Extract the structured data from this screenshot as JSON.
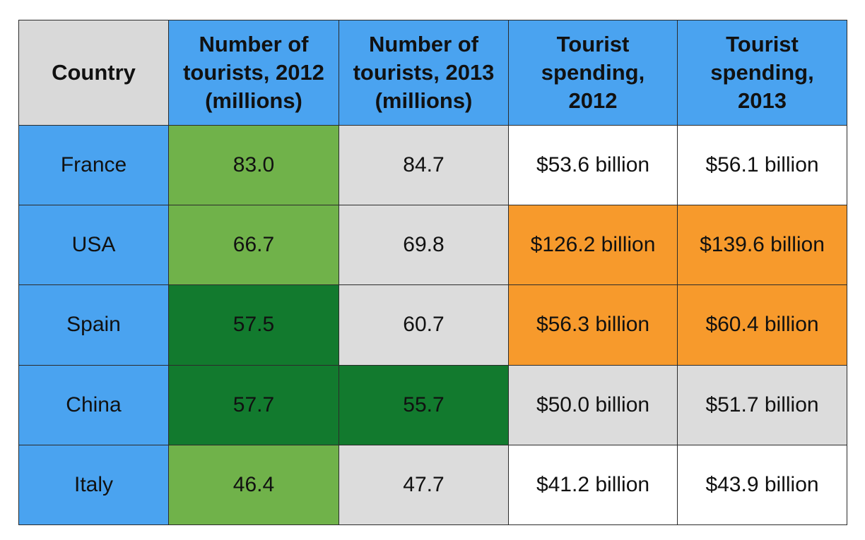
{
  "chart_data": {
    "type": "table",
    "title": "",
    "columns": [
      "Country",
      "Number of tourists, 2012 (millions)",
      "Number of tourists, 2013 (millions)",
      "Tourist spending, 2012",
      "Tourist spending, 2013"
    ],
    "header_lines": [
      [
        "Country"
      ],
      [
        "Number of",
        "tourists, 2012",
        "(millions)"
      ],
      [
        "Number of",
        "tourists, 2013",
        "(millions)"
      ],
      [
        "Tourist",
        "spending,",
        "2012"
      ],
      [
        "Tourist",
        "spending,",
        "2013"
      ]
    ],
    "rows": [
      [
        "France",
        "83.0",
        "84.7",
        "$53.6 billion",
        "$56.1 billion"
      ],
      [
        "USA",
        "66.7",
        "69.8",
        "$126.2 billion",
        "$139.6 billion"
      ],
      [
        "Spain",
        "57.5",
        "60.7",
        "$56.3 billion",
        "$60.4 billion"
      ],
      [
        "China",
        "57.7",
        "55.7",
        "$50.0 billion",
        "$51.7 billion"
      ],
      [
        "Italy",
        "46.4",
        "47.7",
        "$41.2 billion",
        "$43.9 billion"
      ]
    ]
  },
  "colors": {
    "header_country": "#d9d9d9",
    "header": "#4aa3f0",
    "country_cell": "#4aa3f0",
    "light_green": "#70b24a",
    "dark_green": "#127a2e",
    "gray": "#dcdcdc",
    "white": "#ffffff",
    "orange": "#f79a2c"
  },
  "cell_fills": [
    [
      "country_cell",
      "light_green",
      "gray",
      "white",
      "white"
    ],
    [
      "country_cell",
      "light_green",
      "gray",
      "orange",
      "orange"
    ],
    [
      "country_cell",
      "dark_green",
      "gray",
      "orange",
      "orange"
    ],
    [
      "country_cell",
      "dark_green",
      "dark_green",
      "gray",
      "gray"
    ],
    [
      "country_cell",
      "light_green",
      "gray",
      "white",
      "white"
    ]
  ]
}
